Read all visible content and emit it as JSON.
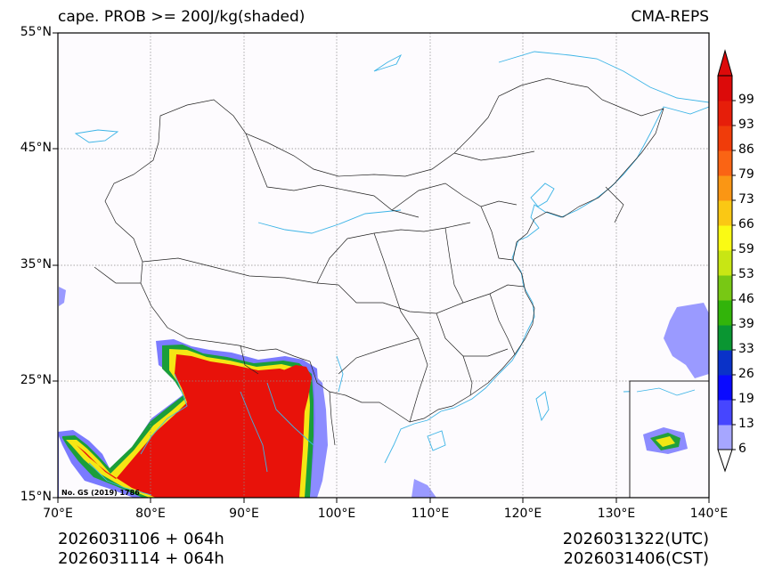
{
  "title_left": "cape. PROB >= 200J/kg(shaded)",
  "title_right": "CMA-REPS",
  "lat_labels": [
    "55°N",
    "45°N",
    "35°N",
    "25°N",
    "15°N"
  ],
  "lon_labels": [
    "70°E",
    "80°E",
    "90°E",
    "100°E",
    "110°E",
    "120°E",
    "130°E",
    "140°E"
  ],
  "footer": {
    "init_utc": "2026031106  +  064h",
    "init_cst": "2026031114  +  064h",
    "valid_utc": "2026031322(UTC)",
    "valid_cst": "2026031406(CST)"
  },
  "map_note": "No. GS (2019) 1786",
  "colorbar": {
    "labels": [
      "99",
      "93",
      "86",
      "79",
      "73",
      "66",
      "59",
      "53",
      "46",
      "39",
      "33",
      "26",
      "19",
      "13",
      "6"
    ],
    "colors": [
      "#a6a6ff",
      "#4646ff",
      "#0a0aff",
      "#0a32c8",
      "#0a9632",
      "#32b40a",
      "#78c814",
      "#c8e614",
      "#fafa14",
      "#fac814",
      "#fa9614",
      "#fa6414",
      "#f03c0a",
      "#e61e0a",
      "#dc0a0a"
    ]
  },
  "colors": {
    "coast": "#3cb4e6",
    "border": "#222222",
    "grid": "#888888",
    "land": "#fdfbfe",
    "shade_red": "#e8120a",
    "shade_blue": "#8c8cff"
  }
}
